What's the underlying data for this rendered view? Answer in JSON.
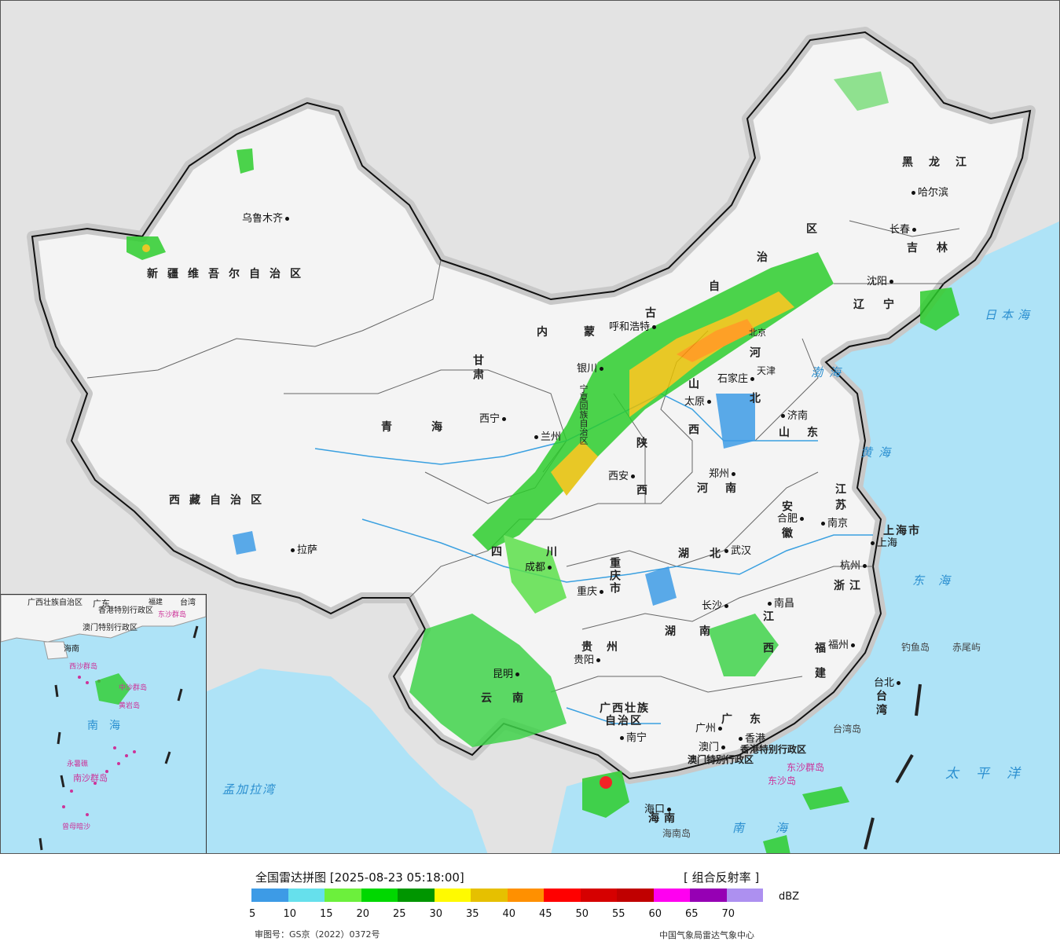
{
  "legend": {
    "title": "全国雷达拼图 [2025-08-23 05:18:00]",
    "product": "[ 组合反射率 ]",
    "unit": "dBZ",
    "approval": "审图号：GS京（2022）0372号",
    "agency": "中国气象局雷达气象中心",
    "ticks": [
      "5",
      "10",
      "15",
      "20",
      "25",
      "30",
      "35",
      "40",
      "45",
      "50",
      "55",
      "60",
      "65",
      "70"
    ],
    "colors": [
      "#3d9be6",
      "#66e0ec",
      "#6cf03c",
      "#00d800",
      "#009600",
      "#fffa00",
      "#e6c000",
      "#ff9000",
      "#ff0000",
      "#d60000",
      "#c00000",
      "#ff00f0",
      "#9600b4",
      "#ad90f0"
    ]
  },
  "provinces": {
    "xinjiang": "新疆维吾尔自治区",
    "xizang": "西藏自治区",
    "qinghai": "青海",
    "gansu": "甘肃",
    "neimenggu_a": "内蒙",
    "neimenggu_b": "古",
    "neimenggu_c": "自",
    "neimenggu_d": "治",
    "neimenggu_e": "区",
    "heilongjiang": "黑龙江",
    "jilin": "吉林",
    "liaoning": "辽宁",
    "hebei": "河北",
    "shanxi": "山西",
    "shandong": "山东",
    "henan": "河南",
    "shaanxi": "陕西",
    "ningxia": "宁夏回族自治区",
    "sichuan": "四川",
    "chongqing": "重庆市",
    "hubei": "湖北",
    "anhui": "安徽",
    "jiangsu": "江苏",
    "shanghai": "上海市",
    "zhejiang": "浙江",
    "jiangxi": "江西",
    "hunan": "湖南",
    "guizhou": "贵州",
    "yunnan": "云南",
    "guangxi_a": "广西壮族",
    "guangxi_b": "自治区",
    "guangdong": "广东",
    "fujian": "福建",
    "taiwan": "台湾",
    "hainan": "海南",
    "hongkong": "香港特别行政区",
    "macau": "澳门特别行政区",
    "beijing": "北京",
    "tianjin": "天津"
  },
  "cities": {
    "urumqi": "乌鲁木齐",
    "lhasa": "拉萨",
    "xining": "西宁",
    "lanzhou": "兰州",
    "yinchuan": "银川",
    "hohhot": "呼和浩特",
    "harbin": "哈尔滨",
    "changchun": "长春",
    "shenyang": "沈阳",
    "shijiazhuang": "石家庄",
    "taiyuan": "太原",
    "jinan": "济南",
    "zhengzhou": "郑州",
    "xian": "西安",
    "chengdu": "成都",
    "chongqing": "重庆",
    "wuhan": "武汉",
    "hefei": "合肥",
    "nanjing": "南京",
    "shanghai": "上海",
    "hangzhou": "杭州",
    "changsha": "长沙",
    "nanchang": "南昌",
    "fuzhou": "福州",
    "guiyang": "贵阳",
    "kunming": "昆明",
    "nanning": "南宁",
    "guangzhou": "广州",
    "macau": "澳门",
    "hongkong": "香港",
    "haikou": "海口",
    "taibei": "台北"
  },
  "seas": {
    "bohai": "渤海",
    "huanghai": "黄海",
    "donghai": "东海",
    "nanhai": "南海",
    "taipingyang": "太平洋",
    "ribenhai": "日本海",
    "mengjialawan": "孟加拉湾"
  },
  "islands": {
    "diaoyudao": "钓鱼岛",
    "chiweiyu": "赤尾屿",
    "taiwandao": "台湾岛",
    "dongsha": "东沙群岛",
    "dongshadao": "东沙岛",
    "hainandao": "海南岛"
  },
  "inset": {
    "guangxi": "广西壮族自治区",
    "guangdong": "广东",
    "fujian": "福建",
    "taiwan": "台湾",
    "hainan": "海南",
    "hongkong": "香港特别行政区",
    "macau": "澳门特别行政区",
    "xisha": "西沙群岛",
    "zhongsha": "中沙群岛",
    "nansha": "南沙群岛",
    "dongsha": "东沙群岛",
    "sea": "南海",
    "huangyan": "黄岩岛",
    "yongshu": "永暑礁",
    "zengmu": "曾母暗沙"
  }
}
